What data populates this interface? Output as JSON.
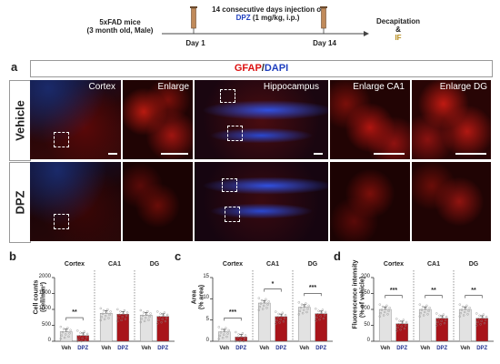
{
  "timeline": {
    "mice": "5xFAD mice",
    "mice_detail": "(3 month old, Male)",
    "injection": "14 consecutive days injection of",
    "drug": "DPZ",
    "dose": " (1 mg/kg, i.p.)",
    "day1": "Day 1",
    "day14": "Day 14",
    "end1": "Decapitation",
    "end2": "&",
    "end3": "IF"
  },
  "panel_a": {
    "letter": "a",
    "title_gfap": "GFAP",
    "title_sep": "/",
    "title_dapi": "DAPI",
    "rows": [
      "Vehicle",
      "DPZ"
    ],
    "columns": [
      "Cortex",
      "Enlarge",
      "Hippocampus",
      "Enlarge CA1",
      "Enlarge DG"
    ]
  },
  "panel_b": {
    "letter": "b"
  },
  "panel_c": {
    "letter": "c"
  },
  "panel_d": {
    "letter": "d"
  },
  "chart_data": [
    {
      "type": "bar",
      "panel": "b",
      "ylabel_line1": "Cell counts",
      "ylabel_line2": "(cell/mm²)",
      "ylim": [
        0,
        2000
      ],
      "yticks": [
        "0",
        "500",
        "1000",
        "1500",
        "2000"
      ],
      "groups": [
        {
          "title": "Cortex",
          "categories": [
            "Veh",
            "DPZ"
          ],
          "values": [
            300,
            180
          ],
          "sig": "**"
        },
        {
          "title": "CA1",
          "categories": [
            "Veh",
            "DPZ"
          ],
          "values": [
            880,
            850
          ],
          "sig": ""
        },
        {
          "title": "DG",
          "categories": [
            "Veh",
            "DPZ"
          ],
          "values": [
            820,
            780
          ],
          "sig": ""
        }
      ]
    },
    {
      "type": "bar",
      "panel": "c",
      "ylabel_line1": "Area",
      "ylabel_line2": "(% area)",
      "ylim": [
        0,
        15
      ],
      "yticks": [
        "0",
        "5",
        "10",
        "15"
      ],
      "groups": [
        {
          "title": "Cortex",
          "categories": [
            "Veh",
            "DPZ"
          ],
          "values": [
            2.2,
            1.0
          ],
          "sig": "***"
        },
        {
          "title": "CA1",
          "categories": [
            "Veh",
            "DPZ"
          ],
          "values": [
            9.0,
            5.8
          ],
          "sig": "*"
        },
        {
          "title": "DG",
          "categories": [
            "Veh",
            "DPZ"
          ],
          "values": [
            8.0,
            6.5
          ],
          "sig": "***"
        }
      ]
    },
    {
      "type": "bar",
      "panel": "d",
      "ylabel_line1": "Fluorescence intensity",
      "ylabel_line2": "(% of vehicle)",
      "ylim": [
        0,
        200
      ],
      "yticks": [
        "0",
        "50",
        "100",
        "150",
        "200"
      ],
      "groups": [
        {
          "title": "Cortex",
          "categories": [
            "Veh",
            "DPZ"
          ],
          "values": [
            100,
            55
          ],
          "sig": "***"
        },
        {
          "title": "CA1",
          "categories": [
            "Veh",
            "DPZ"
          ],
          "values": [
            100,
            72
          ],
          "sig": "**"
        },
        {
          "title": "DG",
          "categories": [
            "Veh",
            "DPZ"
          ],
          "values": [
            100,
            72
          ],
          "sig": "**"
        }
      ]
    }
  ],
  "colors": {
    "veh_bar": "#e2e2e2",
    "dpz_bar": "#a8141a",
    "dpz_label": "#1f2f8f",
    "gfap": "#e01010",
    "dapi": "#1f3fbf"
  }
}
